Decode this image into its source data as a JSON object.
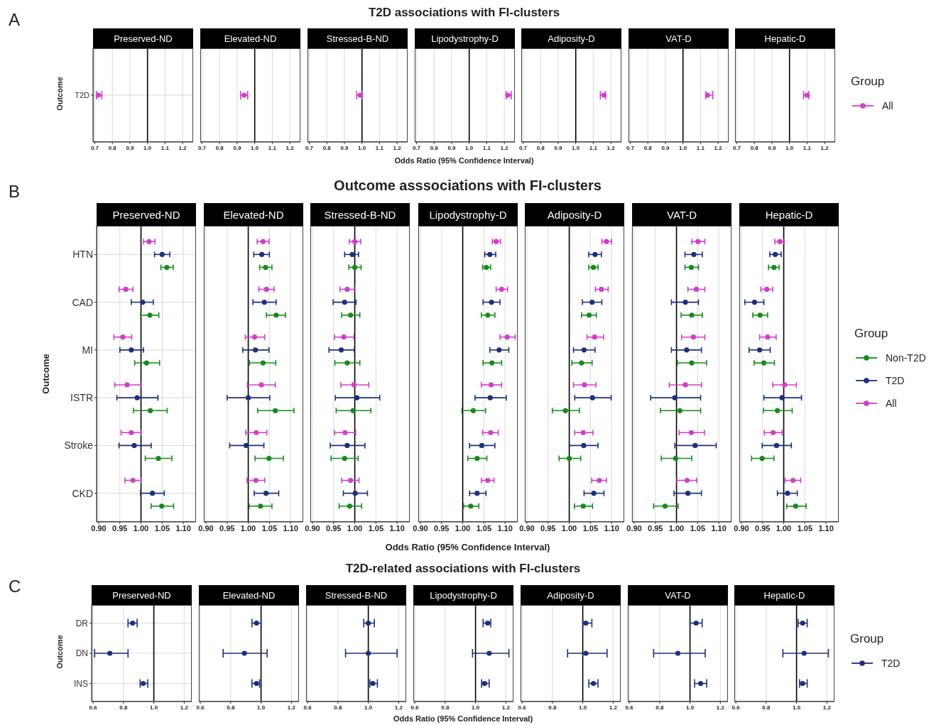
{
  "chart_data": [
    {
      "type": "scatter",
      "orientation": "horizontal",
      "title": "Preserved-ND",
      "ylabel": "Outcome",
      "annotations": [
        "A",
        "T2D associations with FI-clusters"
      ],
      "categories": [
        "T2D"
      ],
      "series": [
        {
          "color": "#d13fc6",
          "values": [
            0.72
          ],
          "errors": [
            [
              0.71,
              0.74
            ]
          ]
        }
      ],
      "xlim": [
        0.69,
        1.26
      ],
      "xticks": [
        {
          "value": 0.7,
          "label": "0.7"
        },
        {
          "value": 0.8,
          "label": "0.8"
        },
        {
          "value": 0.9,
          "label": "0.9"
        },
        {
          "value": 1.0,
          "label": "1.0"
        },
        {
          "value": 1.1,
          "label": "1.1"
        },
        {
          "value": 1.2,
          "label": "1.2"
        }
      ],
      "grid": true,
      "marker": "circle",
      "ref_lines": [
        {
          "axis": "x",
          "value": 1,
          "color": "#000000"
        }
      ]
    },
    {
      "type": "scatter",
      "orientation": "horizontal",
      "title": "Elevated-ND",
      "categories": [
        null
      ],
      "series": [
        {
          "color": "#d13fc6",
          "values": [
            0.94
          ],
          "errors": [
            [
              0.92,
              0.96
            ]
          ]
        }
      ],
      "xlim": [
        0.69,
        1.26
      ],
      "xticks": [
        {
          "value": 0.7,
          "label": "0.7"
        },
        {
          "value": 0.8,
          "label": "0.8"
        },
        {
          "value": 0.9,
          "label": "0.9"
        },
        {
          "value": 1.0,
          "label": "1.0"
        },
        {
          "value": 1.1,
          "label": "1.1"
        },
        {
          "value": 1.2,
          "label": "1.2"
        }
      ],
      "grid": true,
      "marker": "circle",
      "tick_labels": "x",
      "ref_lines": [
        {
          "axis": "x",
          "value": 1,
          "color": "#000000"
        }
      ]
    },
    {
      "type": "scatter",
      "orientation": "horizontal",
      "title": "Stressed-B-ND",
      "categories": [
        null
      ],
      "series": [
        {
          "color": "#d13fc6",
          "values": [
            0.99
          ],
          "errors": [
            [
              0.97,
              1.0
            ]
          ]
        }
      ],
      "xlim": [
        0.69,
        1.26
      ],
      "xticks": [
        {
          "value": 0.7,
          "label": "0.7"
        },
        {
          "value": 0.8,
          "label": "0.8"
        },
        {
          "value": 0.9,
          "label": "0.9"
        },
        {
          "value": 1.0,
          "label": "1.0"
        },
        {
          "value": 1.1,
          "label": "1.1"
        },
        {
          "value": 1.2,
          "label": "1.2"
        }
      ],
      "grid": true,
      "marker": "circle",
      "tick_labels": "x",
      "ref_lines": [
        {
          "axis": "x",
          "value": 1,
          "color": "#000000"
        }
      ]
    },
    {
      "type": "scatter",
      "orientation": "horizontal",
      "title": "Lipodystrophy-D",
      "xlabel": "Odds Ratio (95% Confidence Interval)",
      "categories": [
        null
      ],
      "series": [
        {
          "color": "#d13fc6",
          "values": [
            1.22
          ],
          "errors": [
            [
              1.21,
              1.24
            ]
          ]
        }
      ],
      "xlim": [
        0.69,
        1.26
      ],
      "xticks": [
        {
          "value": 0.7,
          "label": "0.7"
        },
        {
          "value": 0.8,
          "label": "0.8"
        },
        {
          "value": 0.9,
          "label": "0.9"
        },
        {
          "value": 1.0,
          "label": "1.0"
        },
        {
          "value": 1.1,
          "label": "1.1"
        },
        {
          "value": 1.2,
          "label": "1.2"
        }
      ],
      "grid": true,
      "marker": "circle",
      "tick_labels": "x",
      "ref_lines": [
        {
          "axis": "x",
          "value": 1,
          "color": "#000000"
        }
      ]
    },
    {
      "type": "scatter",
      "orientation": "horizontal",
      "title": "Adiposity-D",
      "categories": [
        null
      ],
      "series": [
        {
          "color": "#d13fc6",
          "values": [
            1.16
          ],
          "errors": [
            [
              1.14,
              1.17
            ]
          ]
        }
      ],
      "xlim": [
        0.69,
        1.26
      ],
      "xticks": [
        {
          "value": 0.7,
          "label": "0.7"
        },
        {
          "value": 0.8,
          "label": "0.8"
        },
        {
          "value": 0.9,
          "label": "0.9"
        },
        {
          "value": 1.0,
          "label": "1.0"
        },
        {
          "value": 1.1,
          "label": "1.1"
        },
        {
          "value": 1.2,
          "label": "1.2"
        }
      ],
      "grid": true,
      "marker": "circle",
      "tick_labels": "x",
      "ref_lines": [
        {
          "axis": "x",
          "value": 1,
          "color": "#000000"
        }
      ]
    },
    {
      "type": "scatter",
      "orientation": "horizontal",
      "title": "VAT-D",
      "categories": [
        null
      ],
      "series": [
        {
          "color": "#d13fc6",
          "values": [
            1.14
          ],
          "errors": [
            [
              1.13,
              1.17
            ]
          ]
        }
      ],
      "xlim": [
        0.69,
        1.26
      ],
      "xticks": [
        {
          "value": 0.7,
          "label": "0.7"
        },
        {
          "value": 0.8,
          "label": "0.8"
        },
        {
          "value": 0.9,
          "label": "0.9"
        },
        {
          "value": 1.0,
          "label": "1.0"
        },
        {
          "value": 1.1,
          "label": "1.1"
        },
        {
          "value": 1.2,
          "label": "1.2"
        }
      ],
      "grid": true,
      "marker": "circle",
      "tick_labels": "x",
      "ref_lines": [
        {
          "axis": "x",
          "value": 1,
          "color": "#000000"
        }
      ]
    },
    {
      "type": "scatter",
      "orientation": "horizontal",
      "title": "Hepatic-D",
      "legend": "right",
      "legend_title": "Group",
      "categories": [
        null
      ],
      "series": [
        {
          "name": "All",
          "color": "#d13fc6",
          "values": [
            1.1
          ],
          "errors": [
            [
              1.08,
              1.11
            ]
          ]
        }
      ],
      "xlim": [
        0.69,
        1.26
      ],
      "xticks": [
        {
          "value": 0.7,
          "label": "0.7"
        },
        {
          "value": 0.8,
          "label": "0.8"
        },
        {
          "value": 0.9,
          "label": "0.9"
        },
        {
          "value": 1.0,
          "label": "1.0"
        },
        {
          "value": 1.1,
          "label": "1.1"
        },
        {
          "value": 1.2,
          "label": "1.2"
        }
      ],
      "grid": true,
      "marker": "circle",
      "tick_labels": "x",
      "ref_lines": [
        {
          "axis": "x",
          "value": 1,
          "color": "#000000"
        }
      ]
    },
    {
      "type": "scatter",
      "orientation": "horizontal",
      "title": "Preserved-ND",
      "ylabel": "Outcome",
      "annotations": [
        "B",
        "Outcome asssociations with FI-clusters"
      ],
      "categories": [
        "HTN",
        "CAD",
        "MI",
        "ISTR",
        "Stroke",
        "CKD"
      ],
      "series": [
        {
          "color": "#178a1c",
          "values": [
            1.061,
            1.021,
            1.013,
            1.022,
            1.041,
            1.049
          ],
          "errors": [
            [
              1.047,
              1.076
            ],
            [
              0.999,
              1.042
            ],
            [
              0.985,
              1.044
            ],
            [
              0.982,
              1.062
            ],
            [
              1.01,
              1.073
            ],
            [
              1.024,
              1.077
            ]
          ]
        },
        {
          "color": "#1f2f7a",
          "values": [
            1.05,
            1.004,
            0.977,
            0.991,
            0.984,
            1.027
          ],
          "errors": [
            [
              1.032,
              1.068
            ],
            [
              0.977,
              1.029
            ],
            [
              0.95,
              1.006
            ],
            [
              0.943,
              1.04
            ],
            [
              0.948,
              1.024
            ],
            [
              0.999,
              1.055
            ]
          ]
        },
        {
          "color": "#d13fc6",
          "values": [
            1.019,
            0.964,
            0.957,
            0.967,
            0.977,
            0.981
          ],
          "errors": [
            [
              1.006,
              1.033
            ],
            [
              0.948,
              0.981
            ],
            [
              0.936,
              0.978
            ],
            [
              0.938,
              0.999
            ],
            [
              0.953,
              1.0
            ],
            [
              0.962,
              1.0
            ]
          ]
        }
      ],
      "xlim": [
        0.895,
        1.13
      ],
      "xticks": [
        {
          "value": 0.9,
          "label": "0.90"
        },
        {
          "value": 0.95,
          "label": "0.95"
        },
        {
          "value": 1.0,
          "label": "1.00"
        },
        {
          "value": 1.05,
          "label": "1.05"
        },
        {
          "value": 1.1,
          "label": "1.10"
        }
      ],
      "grid": true,
      "marker": "circle",
      "ref_lines": [
        {
          "axis": "x",
          "value": 1,
          "color": "#000000"
        }
      ]
    },
    {
      "type": "scatter",
      "orientation": "horizontal",
      "title": "Elevated-ND",
      "categories": [
        null,
        null,
        null,
        null,
        null,
        null
      ],
      "series": [
        {
          "color": "#178a1c",
          "values": [
            1.041,
            1.066,
            1.035,
            1.064,
            1.049,
            1.029
          ],
          "errors": [
            [
              1.027,
              1.056
            ],
            [
              1.043,
              1.088
            ],
            [
              1.003,
              1.065
            ],
            [
              1.022,
              1.108
            ],
            [
              1.016,
              1.083
            ],
            [
              1.002,
              1.056
            ]
          ]
        },
        {
          "color": "#1f2f7a",
          "values": [
            1.032,
            1.038,
            1.017,
            1.0,
            0.995,
            1.042
          ],
          "errors": [
            [
              1.013,
              1.05
            ],
            [
              1.011,
              1.066
            ],
            [
              0.987,
              1.049
            ],
            [
              0.95,
              1.051
            ],
            [
              0.956,
              1.037
            ],
            [
              1.014,
              1.072
            ]
          ]
        },
        {
          "color": "#d13fc6",
          "values": [
            1.035,
            1.043,
            1.015,
            1.031,
            1.019,
            1.018
          ],
          "errors": [
            [
              1.021,
              1.049
            ],
            [
              1.025,
              1.061
            ],
            [
              0.993,
              1.039
            ],
            [
              0.998,
              1.064
            ],
            [
              0.994,
              1.044
            ],
            [
              0.997,
              1.039
            ]
          ]
        }
      ],
      "xlim": [
        0.895,
        1.13
      ],
      "xticks": [
        {
          "value": 0.9,
          "label": "0.90"
        },
        {
          "value": 0.95,
          "label": "0.95"
        },
        {
          "value": 1.0,
          "label": "1.00"
        },
        {
          "value": 1.05,
          "label": "1.05"
        },
        {
          "value": 1.1,
          "label": "1.10"
        }
      ],
      "grid": true,
      "marker": "circle",
      "tick_labels": "x",
      "ref_lines": [
        {
          "axis": "x",
          "value": 1,
          "color": "#000000"
        }
      ]
    },
    {
      "type": "scatter",
      "orientation": "horizontal",
      "title": "Stressed-B-ND",
      "categories": [
        null,
        null,
        null,
        null,
        null,
        null
      ],
      "series": [
        {
          "color": "#178a1c",
          "values": [
            1.0,
            0.99,
            0.982,
            0.996,
            0.976,
            0.988
          ],
          "errors": [
            [
              0.986,
              1.015
            ],
            [
              0.969,
              1.012
            ],
            [
              0.953,
              1.012
            ],
            [
              0.956,
              1.038
            ],
            [
              0.944,
              1.008
            ],
            [
              0.963,
              1.016
            ]
          ]
        },
        {
          "color": "#1f2f7a",
          "values": [
            0.994,
            0.976,
            0.968,
            1.005,
            0.982,
            1.001
          ],
          "errors": [
            [
              0.976,
              1.009
            ],
            [
              0.949,
              1.003
            ],
            [
              0.939,
              0.999
            ],
            [
              0.954,
              1.059
            ],
            [
              0.942,
              1.024
            ],
            [
              0.973,
              1.03
            ]
          ]
        },
        {
          "color": "#d13fc6",
          "values": [
            1.0,
            0.982,
            0.974,
            0.998,
            0.977,
            0.99
          ],
          "errors": [
            [
              0.987,
              1.014
            ],
            [
              0.965,
              0.999
            ],
            [
              0.952,
              0.998
            ],
            [
              0.967,
              1.033
            ],
            [
              0.952,
              1.002
            ],
            [
              0.969,
              1.01
            ]
          ]
        }
      ],
      "xlim": [
        0.895,
        1.13
      ],
      "xticks": [
        {
          "value": 0.9,
          "label": "0.90"
        },
        {
          "value": 0.95,
          "label": "0.95"
        },
        {
          "value": 1.0,
          "label": "1.00"
        },
        {
          "value": 1.05,
          "label": "1.05"
        },
        {
          "value": 1.1,
          "label": "1.10"
        }
      ],
      "grid": true,
      "marker": "circle",
      "tick_labels": "x",
      "ref_lines": [
        {
          "axis": "x",
          "value": 1,
          "color": "#000000"
        }
      ]
    },
    {
      "type": "scatter",
      "orientation": "horizontal",
      "title": "Lipodystrophy-D",
      "xlabel": "Odds Ratio (95% Confidence Interval)",
      "categories": [
        null,
        null,
        null,
        null,
        null,
        null
      ],
      "series": [
        {
          "color": "#178a1c",
          "values": [
            1.056,
            1.059,
            1.069,
            1.025,
            1.034,
            1.019
          ],
          "errors": [
            [
              1.047,
              1.066
            ],
            [
              1.044,
              1.076
            ],
            [
              1.048,
              1.092
            ],
            [
              0.998,
              1.054
            ],
            [
              1.012,
              1.057
            ],
            [
              1.002,
              1.038
            ]
          ]
        },
        {
          "color": "#1f2f7a",
          "values": [
            1.064,
            1.068,
            1.086,
            1.065,
            1.045,
            1.034
          ],
          "errors": [
            [
              1.052,
              1.078
            ],
            [
              1.048,
              1.088
            ],
            [
              1.064,
              1.109
            ],
            [
              1.029,
              1.103
            ],
            [
              1.016,
              1.076
            ],
            [
              1.016,
              1.055
            ]
          ]
        },
        {
          "color": "#d13fc6",
          "values": [
            1.079,
            1.092,
            1.105,
            1.067,
            1.066,
            1.059
          ],
          "errors": [
            [
              1.07,
              1.089
            ],
            [
              1.079,
              1.106
            ],
            [
              1.088,
              1.124
            ],
            [
              1.044,
              1.092
            ],
            [
              1.047,
              1.084
            ],
            [
              1.044,
              1.074
            ]
          ]
        }
      ],
      "xlim": [
        0.895,
        1.13
      ],
      "xticks": [
        {
          "value": 0.9,
          "label": "0.90"
        },
        {
          "value": 0.95,
          "label": "0.95"
        },
        {
          "value": 1.0,
          "label": "1.00"
        },
        {
          "value": 1.05,
          "label": "1.05"
        },
        {
          "value": 1.1,
          "label": "1.10"
        }
      ],
      "grid": true,
      "marker": "circle",
      "tick_labels": "x",
      "ref_lines": [
        {
          "axis": "x",
          "value": 1,
          "color": "#000000"
        }
      ]
    },
    {
      "type": "scatter",
      "orientation": "horizontal",
      "title": "Adiposity-D",
      "categories": [
        null,
        null,
        null,
        null,
        null,
        null
      ],
      "series": [
        {
          "color": "#178a1c",
          "values": [
            1.057,
            1.047,
            1.029,
            0.991,
            1.0,
            1.033
          ],
          "errors": [
            [
              1.046,
              1.068
            ],
            [
              1.029,
              1.064
            ],
            [
              1.006,
              1.054
            ],
            [
              0.96,
              1.024
            ],
            [
              0.976,
              1.027
            ],
            [
              1.012,
              1.055
            ]
          ]
        },
        {
          "color": "#1f2f7a",
          "values": [
            1.061,
            1.054,
            1.035,
            1.055,
            1.034,
            1.058
          ],
          "errors": [
            [
              1.046,
              1.076
            ],
            [
              1.031,
              1.077
            ],
            [
              1.01,
              1.061
            ],
            [
              1.013,
              1.099
            ],
            [
              1.0,
              1.068
            ],
            [
              1.035,
              1.082
            ]
          ]
        },
        {
          "color": "#d13fc6",
          "values": [
            1.088,
            1.076,
            1.06,
            1.036,
            1.033,
            1.071
          ],
          "errors": [
            [
              1.077,
              1.1
            ],
            [
              1.062,
              1.092
            ],
            [
              1.042,
              1.081
            ],
            [
              1.01,
              1.063
            ],
            [
              1.013,
              1.056
            ],
            [
              1.053,
              1.088
            ]
          ]
        }
      ],
      "xlim": [
        0.895,
        1.13
      ],
      "xticks": [
        {
          "value": 0.9,
          "label": "0.90"
        },
        {
          "value": 0.95,
          "label": "0.95"
        },
        {
          "value": 1.0,
          "label": "1.00"
        },
        {
          "value": 1.05,
          "label": "1.05"
        },
        {
          "value": 1.1,
          "label": "1.10"
        }
      ],
      "grid": true,
      "marker": "circle",
      "tick_labels": "x",
      "ref_lines": [
        {
          "axis": "x",
          "value": 1,
          "color": "#000000"
        }
      ]
    },
    {
      "type": "scatter",
      "orientation": "horizontal",
      "title": "VAT-D",
      "categories": [
        null,
        null,
        null,
        null,
        null,
        null
      ],
      "series": [
        {
          "color": "#178a1c",
          "values": [
            1.035,
            1.036,
            1.036,
            1.008,
            0.998,
            0.973
          ],
          "errors": [
            [
              1.02,
              1.052
            ],
            [
              1.011,
              1.061
            ],
            [
              1.002,
              1.071
            ],
            [
              0.962,
              1.057
            ],
            [
              0.964,
              1.036
            ],
            [
              0.946,
              1.004
            ]
          ]
        },
        {
          "color": "#1f2f7a",
          "values": [
            1.041,
            1.021,
            1.024,
            0.996,
            1.044,
            1.027
          ],
          "errors": [
            [
              1.02,
              1.061
            ],
            [
              0.988,
              1.052
            ],
            [
              0.988,
              1.059
            ],
            [
              0.939,
              1.057
            ],
            [
              0.996,
              1.094
            ],
            [
              0.994,
              1.059
            ]
          ]
        },
        {
          "color": "#d13fc6",
          "values": [
            1.051,
            1.047,
            1.04,
            1.021,
            1.035,
            1.025
          ],
          "errors": [
            [
              1.036,
              1.067
            ],
            [
              1.027,
              1.067
            ],
            [
              1.012,
              1.067
            ],
            [
              0.983,
              1.059
            ],
            [
              1.006,
              1.066
            ],
            [
              1.001,
              1.048
            ]
          ]
        }
      ],
      "xlim": [
        0.895,
        1.13
      ],
      "xticks": [
        {
          "value": 0.9,
          "label": "0.90"
        },
        {
          "value": 0.95,
          "label": "0.95"
        },
        {
          "value": 1.0,
          "label": "1.00"
        },
        {
          "value": 1.05,
          "label": "1.05"
        },
        {
          "value": 1.1,
          "label": "1.10"
        }
      ],
      "grid": true,
      "marker": "circle",
      "tick_labels": "x",
      "ref_lines": [
        {
          "axis": "x",
          "value": 1,
          "color": "#000000"
        }
      ]
    },
    {
      "type": "scatter",
      "orientation": "horizontal",
      "title": "Hepatic-D",
      "legend": "right",
      "legend_title": "Group",
      "categories": [
        null,
        null,
        null,
        null,
        null,
        null
      ],
      "series": [
        {
          "name": "Non-T2D",
          "color": "#178a1c",
          "values": [
            0.977,
            0.944,
            0.953,
            0.985,
            0.949,
            1.028
          ],
          "errors": [
            [
              0.964,
              0.989
            ],
            [
              0.927,
              0.962
            ],
            [
              0.93,
              0.978
            ],
            [
              0.952,
              1.02
            ],
            [
              0.924,
              0.977
            ],
            [
              1.007,
              1.053
            ]
          ]
        },
        {
          "name": "T2D",
          "color": "#1f2f7a",
          "values": [
            0.98,
            0.931,
            0.943,
            0.996,
            0.983,
            1.009
          ],
          "errors": [
            [
              0.967,
              0.994
            ],
            [
              0.908,
              0.953
            ],
            [
              0.918,
              0.968
            ],
            [
              0.953,
              1.042
            ],
            [
              0.949,
              1.018
            ],
            [
              0.985,
              1.032
            ]
          ]
        },
        {
          "name": "All",
          "color": "#d13fc6",
          "values": [
            0.991,
            0.96,
            0.962,
            1.002,
            0.975,
            1.022
          ],
          "errors": [
            [
              0.979,
              1.001
            ],
            [
              0.946,
              0.974
            ],
            [
              0.943,
              0.982
            ],
            [
              0.974,
              1.03
            ],
            [
              0.954,
              0.996
            ],
            [
              1.003,
              1.04
            ]
          ]
        }
      ],
      "xlim": [
        0.895,
        1.13
      ],
      "xticks": [
        {
          "value": 0.9,
          "label": "0.90"
        },
        {
          "value": 0.95,
          "label": "0.95"
        },
        {
          "value": 1.0,
          "label": "1.00"
        },
        {
          "value": 1.05,
          "label": "1.05"
        },
        {
          "value": 1.1,
          "label": "1.10"
        }
      ],
      "grid": true,
      "marker": "circle",
      "tick_labels": "x",
      "ref_lines": [
        {
          "axis": "x",
          "value": 1,
          "color": "#000000"
        }
      ]
    },
    {
      "type": "scatter",
      "orientation": "horizontal",
      "title": "Preserved-ND",
      "ylabel": "Outcome",
      "annotations": [
        "C",
        "T2D-related associations with FI-clusters"
      ],
      "categories": [
        "DR",
        "DN",
        "INS"
      ],
      "series": [
        {
          "color": "#1f2f7a",
          "values": [
            0.86,
            0.71,
            0.93
          ],
          "errors": [
            [
              0.83,
              0.89
            ],
            [
              0.61,
              0.83
            ],
            [
              0.91,
              0.96
            ]
          ]
        }
      ],
      "xlim": [
        0.59,
        1.25
      ],
      "xticks": [
        {
          "value": 0.6,
          "label": "0.6"
        },
        {
          "value": 0.8,
          "label": "0.8"
        },
        {
          "value": 1.0,
          "label": "1.0"
        },
        {
          "value": 1.2,
          "label": "1.2"
        }
      ],
      "grid": true,
      "marker": "circle",
      "ref_lines": [
        {
          "axis": "x",
          "value": 1,
          "color": "#000000"
        }
      ]
    },
    {
      "type": "scatter",
      "orientation": "horizontal",
      "title": "Elevated-ND",
      "categories": [
        null,
        null,
        null
      ],
      "series": [
        {
          "color": "#1f2f7a",
          "values": [
            0.97,
            0.89,
            0.97
          ],
          "errors": [
            [
              0.94,
              1.0
            ],
            [
              0.75,
              1.04
            ],
            [
              0.94,
              0.99
            ]
          ]
        }
      ],
      "xlim": [
        0.59,
        1.25
      ],
      "xticks": [
        {
          "value": 0.6,
          "label": "0.6"
        },
        {
          "value": 0.8,
          "label": "0.8"
        },
        {
          "value": 1.0,
          "label": "1.0"
        },
        {
          "value": 1.2,
          "label": "1.2"
        }
      ],
      "grid": true,
      "marker": "circle",
      "tick_labels": "x",
      "ref_lines": [
        {
          "axis": "x",
          "value": 1,
          "color": "#000000"
        }
      ]
    },
    {
      "type": "scatter",
      "orientation": "horizontal",
      "title": "Stressed-B-ND",
      "categories": [
        null,
        null,
        null
      ],
      "series": [
        {
          "color": "#1f2f7a",
          "values": [
            1.0,
            1.0,
            1.03
          ],
          "errors": [
            [
              0.97,
              1.04
            ],
            [
              0.85,
              1.19
            ],
            [
              1.01,
              1.06
            ]
          ]
        }
      ],
      "xlim": [
        0.59,
        1.25
      ],
      "xticks": [
        {
          "value": 0.6,
          "label": "0.6"
        },
        {
          "value": 0.8,
          "label": "0.8"
        },
        {
          "value": 1.0,
          "label": "1.0"
        },
        {
          "value": 1.2,
          "label": "1.2"
        }
      ],
      "grid": true,
      "marker": "circle",
      "tick_labels": "x",
      "ref_lines": [
        {
          "axis": "x",
          "value": 1,
          "color": "#000000"
        }
      ]
    },
    {
      "type": "scatter",
      "orientation": "horizontal",
      "title": "Lipodystrophy-D",
      "xlabel": "Odds Ratio (95% Confidence Interval)",
      "categories": [
        null,
        null,
        null
      ],
      "series": [
        {
          "color": "#1f2f7a",
          "values": [
            1.08,
            1.09,
            1.06
          ],
          "errors": [
            [
              1.05,
              1.1
            ],
            [
              0.98,
              1.22
            ],
            [
              1.04,
              1.09
            ]
          ]
        }
      ],
      "xlim": [
        0.59,
        1.25
      ],
      "xticks": [
        {
          "value": 0.6,
          "label": "0.6"
        },
        {
          "value": 0.8,
          "label": "0.8"
        },
        {
          "value": 1.0,
          "label": "1.0"
        },
        {
          "value": 1.2,
          "label": "1.2"
        }
      ],
      "grid": true,
      "marker": "circle",
      "tick_labels": "x",
      "ref_lines": [
        {
          "axis": "x",
          "value": 1,
          "color": "#000000"
        }
      ]
    },
    {
      "type": "scatter",
      "orientation": "horizontal",
      "title": "Adiposity-D",
      "categories": [
        null,
        null,
        null
      ],
      "series": [
        {
          "color": "#1f2f7a",
          "values": [
            1.02,
            1.02,
            1.07
          ],
          "errors": [
            [
              1.0,
              1.06
            ],
            [
              0.9,
              1.16
            ],
            [
              1.04,
              1.1
            ]
          ]
        }
      ],
      "xlim": [
        0.59,
        1.25
      ],
      "xticks": [
        {
          "value": 0.6,
          "label": "0.6"
        },
        {
          "value": 0.8,
          "label": "0.8"
        },
        {
          "value": 1.0,
          "label": "1.0"
        },
        {
          "value": 1.2,
          "label": "1.2"
        }
      ],
      "grid": true,
      "marker": "circle",
      "tick_labels": "x",
      "ref_lines": [
        {
          "axis": "x",
          "value": 1,
          "color": "#000000"
        }
      ]
    },
    {
      "type": "scatter",
      "orientation": "horizontal",
      "title": "VAT-D",
      "categories": [
        null,
        null,
        null
      ],
      "series": [
        {
          "color": "#1f2f7a",
          "values": [
            1.04,
            0.92,
            1.07
          ],
          "errors": [
            [
              1.0,
              1.08
            ],
            [
              0.76,
              1.1
            ],
            [
              1.03,
              1.11
            ]
          ]
        }
      ],
      "xlim": [
        0.59,
        1.25
      ],
      "xticks": [
        {
          "value": 0.6,
          "label": "0.6"
        },
        {
          "value": 0.8,
          "label": "0.8"
        },
        {
          "value": 1.0,
          "label": "1.0"
        },
        {
          "value": 1.2,
          "label": "1.2"
        }
      ],
      "grid": true,
      "marker": "circle",
      "tick_labels": "x",
      "ref_lines": [
        {
          "axis": "x",
          "value": 1,
          "color": "#000000"
        }
      ]
    },
    {
      "type": "scatter",
      "orientation": "horizontal",
      "title": "Hepatic-D",
      "legend": "right",
      "legend_title": "Group",
      "categories": [
        null,
        null,
        null
      ],
      "series": [
        {
          "name": "T2D",
          "color": "#1f2f7a",
          "values": [
            1.04,
            1.05,
            1.04
          ],
          "errors": [
            [
              1.01,
              1.07
            ],
            [
              0.91,
              1.21
            ],
            [
              1.02,
              1.07
            ]
          ]
        }
      ],
      "xlim": [
        0.59,
        1.25
      ],
      "xticks": [
        {
          "value": 0.6,
          "label": "0.6"
        },
        {
          "value": 0.8,
          "label": "0.8"
        },
        {
          "value": 1.0,
          "label": "1.0"
        },
        {
          "value": 1.2,
          "label": "1.2"
        }
      ],
      "grid": true,
      "marker": "circle",
      "tick_labels": "x",
      "ref_lines": [
        {
          "axis": "x",
          "value": 1,
          "color": "#000000"
        }
      ]
    }
  ]
}
